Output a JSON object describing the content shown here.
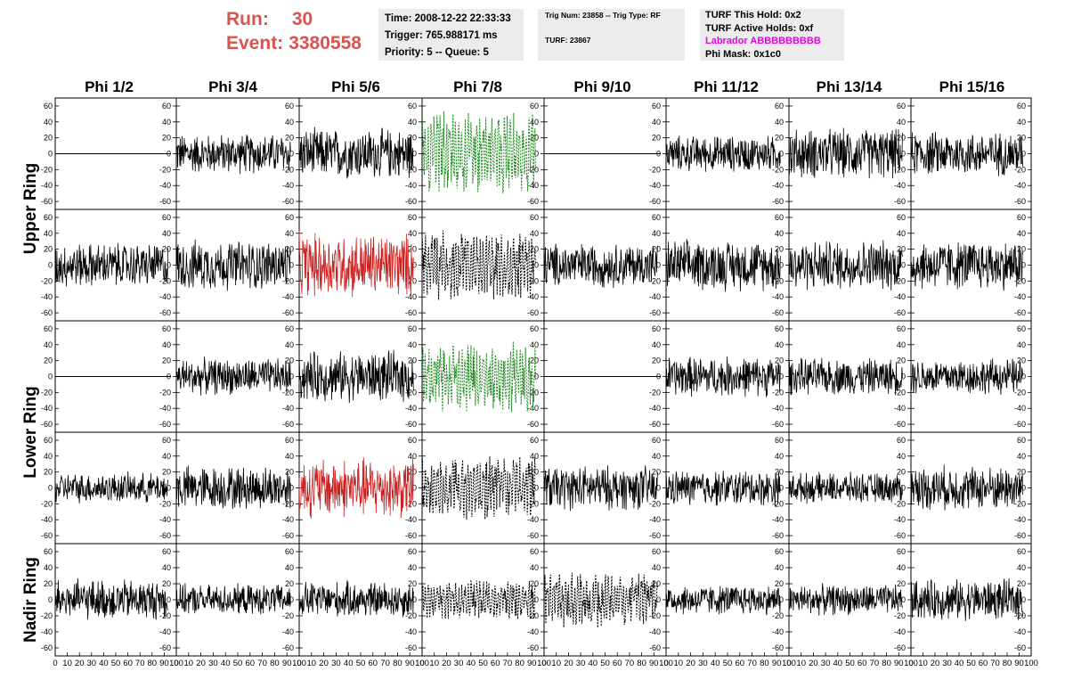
{
  "header": {
    "run_label": "Run:",
    "run_value": "30",
    "event_label": "Event:",
    "event_value": "3380558"
  },
  "time_box": {
    "time": "Time: 2008-12-22 22:33:33",
    "trigger": "Trigger: 765.988171 ms",
    "priority": "Priority: 5 -- Queue: 5"
  },
  "trig_box": {
    "trig": "Trig Num: 23858 -- Trig Type: RF",
    "turf": "TURF: 23867"
  },
  "turf_box": {
    "this_hold": "TURF This Hold: 0x2",
    "active_holds": "TURF Active Holds: 0xf",
    "labrador": "Labrador ABBBBBBBBB",
    "phi_mask": "Phi Mask: 0x1c0"
  },
  "columns": [
    "Phi 1/2",
    "Phi 3/4",
    "Phi 5/6",
    "Phi 7/8",
    "Phi 9/10",
    "Phi 11/12",
    "Phi 13/14",
    "Phi 15/16"
  ],
  "rings": [
    "Upper Ring",
    "Lower Ring",
    "Nadir Ring"
  ],
  "colors": {
    "run_text": "#d9534f",
    "labrador": "#e600e6",
    "trace_default": "#000000",
    "trace_red": "#cc2222",
    "trace_green": "#228b22"
  },
  "chart_data": {
    "type": "line",
    "grid": "5 rows x 8 columns of waveform panels",
    "row_groups": [
      "Upper Ring",
      "Upper Ring",
      "Lower Ring",
      "Lower Ring",
      "Nadir Ring"
    ],
    "y_ticks": [
      "60",
      "40",
      "20",
      "0",
      "-20",
      "-40",
      "-60"
    ],
    "ylim": [
      -70,
      70
    ],
    "x_ticks": [
      "0",
      "10",
      "20",
      "30",
      "40",
      "50",
      "60",
      "70",
      "80",
      "90",
      "100"
    ],
    "xlim": [
      0,
      100
    ],
    "panel_styles": [
      [
        "flat",
        "black",
        "black",
        "green-dashed",
        "flat",
        "black",
        "black",
        "black"
      ],
      [
        "black",
        "black",
        "red",
        "black-dashed",
        "black",
        "black",
        "black",
        "black"
      ],
      [
        "flat",
        "black",
        "black",
        "green-dashed",
        "flat",
        "black",
        "black",
        "black"
      ],
      [
        "black",
        "black",
        "red",
        "black-dashed",
        "black",
        "black",
        "black",
        "black"
      ],
      [
        "black",
        "black",
        "black",
        "black-dashed",
        "black-dashed",
        "black",
        "black",
        "black"
      ]
    ],
    "amplitudes": [
      [
        0,
        20,
        25,
        55,
        0,
        18,
        25,
        22
      ],
      [
        22,
        25,
        32,
        45,
        22,
        25,
        25,
        25
      ],
      [
        0,
        18,
        25,
        45,
        0,
        20,
        18,
        18
      ],
      [
        15,
        22,
        30,
        40,
        22,
        18,
        15,
        22
      ],
      [
        20,
        15,
        18,
        25,
        35,
        15,
        15,
        20
      ]
    ]
  }
}
